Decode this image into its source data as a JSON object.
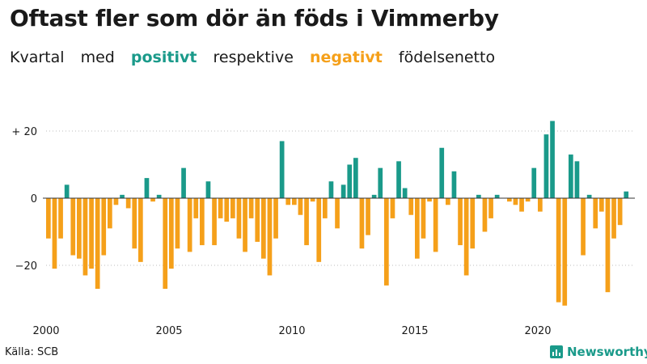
{
  "title": "Oftast fler som dör än föds i Vimmerby",
  "subtitle": {
    "part1": "Kvartal",
    "part2": "med",
    "positive": "positivt",
    "part3": "respektive",
    "negative": "negativt",
    "part4": "födelsenetto"
  },
  "source": "Källa: SCB",
  "brand": "Newsworthy",
  "colors": {
    "positive": "#1a9a8a",
    "negative": "#f5a01a",
    "text": "#1a1a1a"
  },
  "chart_data": {
    "type": "bar",
    "x_start": "2000 Q1",
    "ylim": [
      -33,
      25
    ],
    "yticks": [
      {
        "value": 20,
        "label": "+ 20"
      },
      {
        "value": 0,
        "label": "0"
      },
      {
        "value": -20,
        "label": "−20"
      }
    ],
    "xticks": [
      {
        "label": "2000",
        "year": 2000
      },
      {
        "label": "2005",
        "year": 2005
      },
      {
        "label": "2010",
        "year": 2010
      },
      {
        "label": "2015",
        "year": 2015
      },
      {
        "label": "2020",
        "year": 2020
      }
    ],
    "values": [
      -12,
      -21,
      -12,
      4,
      -17,
      -18,
      -23,
      -21,
      -27,
      -17,
      -9,
      -2,
      1,
      -3,
      -15,
      -19,
      6,
      -1,
      1,
      -27,
      -21,
      -15,
      9,
      -16,
      -6,
      -14,
      5,
      -14,
      -6,
      -7,
      -6,
      -12,
      -16,
      -6,
      -13,
      -18,
      -23,
      -12,
      17,
      -2,
      -2,
      -5,
      -14,
      -1,
      -19,
      -6,
      5,
      -9,
      4,
      10,
      12,
      -15,
      -11,
      1,
      9,
      -26,
      -6,
      11,
      3,
      -5,
      -18,
      -12,
      -1,
      -16,
      15,
      -2,
      8,
      -14,
      -23,
      -15,
      1,
      -10,
      -6,
      1,
      0,
      -1,
      -2,
      -4,
      -1,
      9,
      -4,
      19,
      23,
      -31,
      -32,
      13,
      11,
      -17,
      1,
      -9,
      -4,
      -28,
      -12,
      -8,
      2
    ]
  }
}
